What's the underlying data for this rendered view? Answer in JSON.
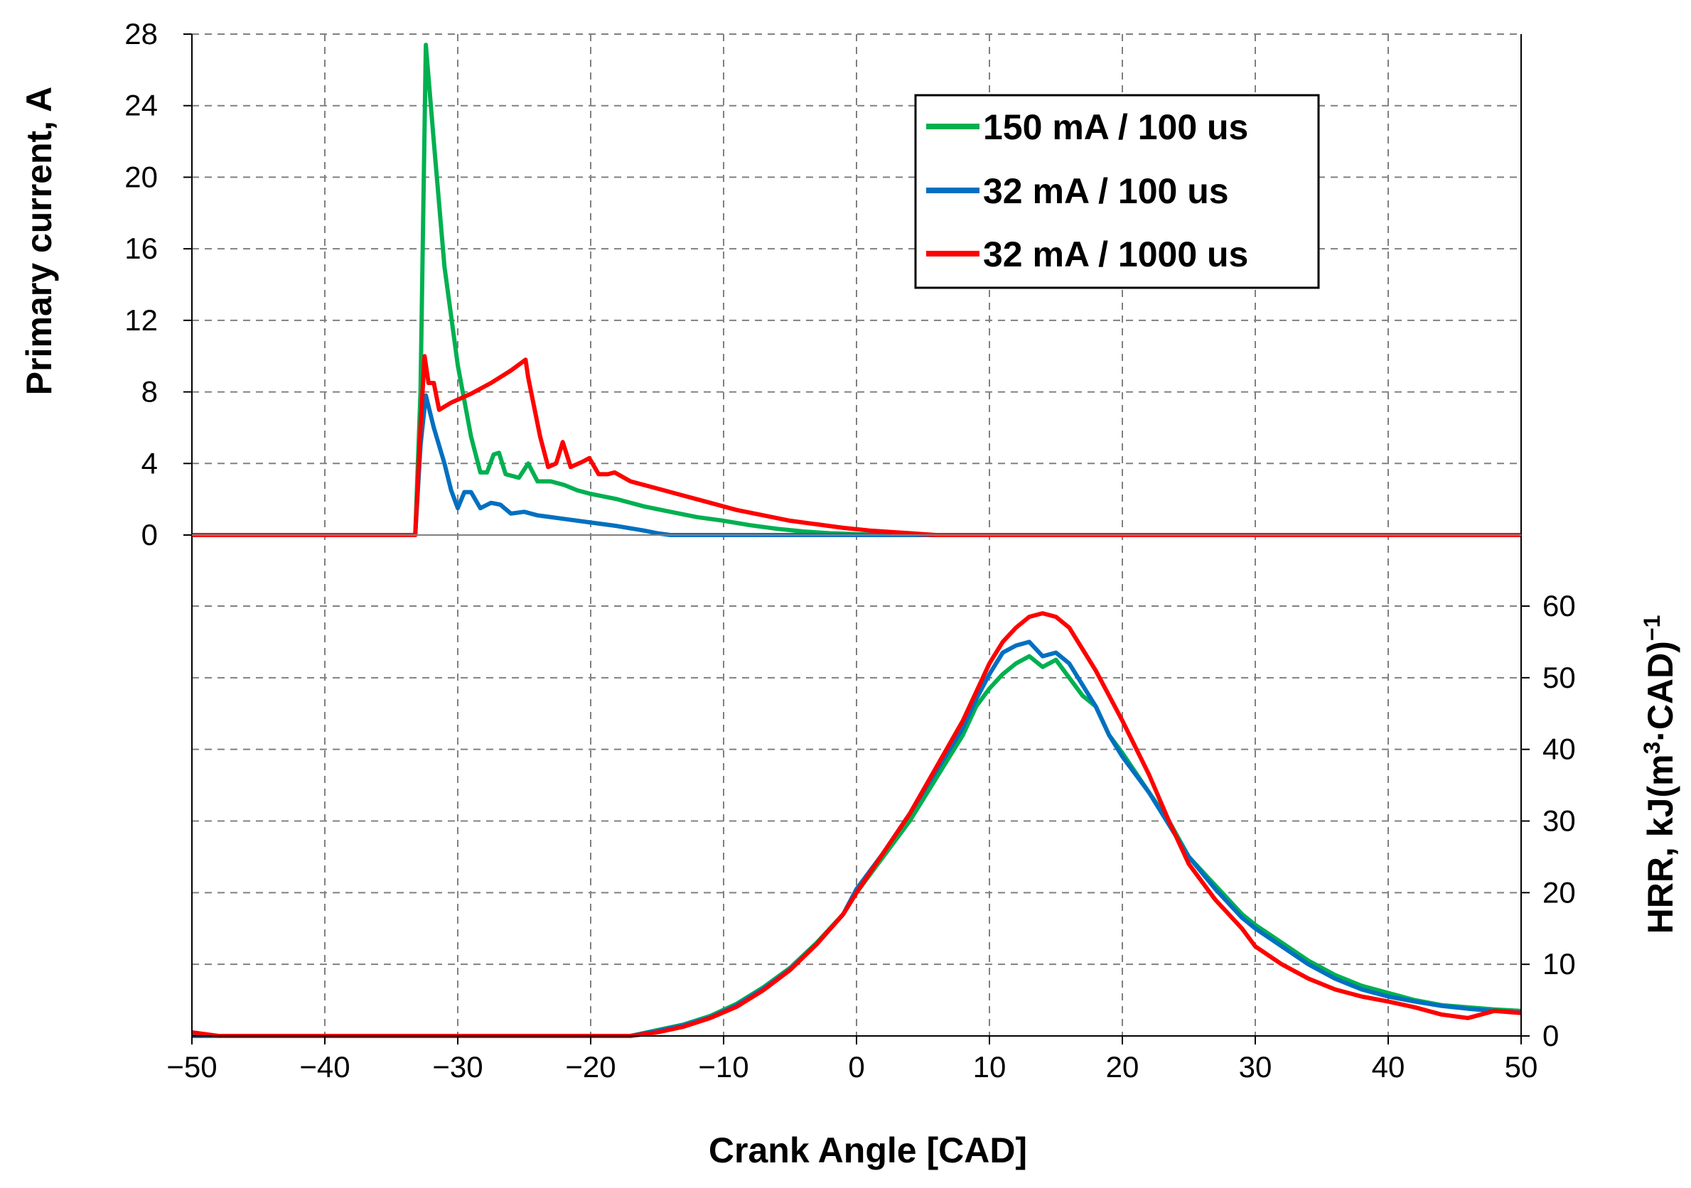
{
  "chart_data": {
    "type": "line",
    "title": "",
    "xlabel": "Crank Angle [CAD]",
    "xlim": [
      -50,
      50
    ],
    "xticks": [
      -50,
      -40,
      -30,
      -20,
      -10,
      0,
      10,
      20,
      30,
      40,
      50
    ],
    "xtick_labels": [
      "−50",
      "−40",
      "−30",
      "−20",
      "−10",
      "0",
      "10",
      "20",
      "30",
      "40",
      "50"
    ],
    "grid": true,
    "legend_position": "top-right",
    "panels": {
      "current": {
        "ylabel": "Primary current, A",
        "ylim": [
          0,
          28
        ],
        "yticks": [
          0,
          4,
          8,
          12,
          16,
          20,
          24,
          28
        ],
        "ytick_labels": [
          "0",
          "4",
          "8",
          "12",
          "16",
          "20",
          "24",
          "28"
        ],
        "axis_side": "left"
      },
      "hrr": {
        "ylabel_main": "HRR,  kJ(m",
        "ylabel_sup1": "3",
        "ylabel_mid": "·CAD)",
        "ylabel_sup2": "−1",
        "ylim": [
          0,
          60
        ],
        "yticks": [
          0,
          10,
          20,
          30,
          40,
          50,
          60
        ],
        "ytick_labels": [
          "0",
          "10",
          "20",
          "30",
          "40",
          "50",
          "60"
        ],
        "axis_side": "right"
      }
    },
    "series": [
      {
        "name": "150 mA / 100 us",
        "color": "#00b050",
        "current": [
          [
            -50,
            0
          ],
          [
            -33.2,
            0
          ],
          [
            -32.8,
            8
          ],
          [
            -32.4,
            27.4
          ],
          [
            -31.8,
            22
          ],
          [
            -31,
            15
          ],
          [
            -30,
            9.5
          ],
          [
            -29,
            5.5
          ],
          [
            -28.3,
            3.5
          ],
          [
            -27.8,
            3.5
          ],
          [
            -27.3,
            4.5
          ],
          [
            -26.9,
            4.6
          ],
          [
            -26.4,
            3.4
          ],
          [
            -25.4,
            3.2
          ],
          [
            -24.7,
            4.0
          ],
          [
            -24,
            3.0
          ],
          [
            -23,
            3.0
          ],
          [
            -22,
            2.8
          ],
          [
            -21,
            2.5
          ],
          [
            -20,
            2.3
          ],
          [
            -18,
            2.0
          ],
          [
            -16,
            1.6
          ],
          [
            -14,
            1.3
          ],
          [
            -12,
            1.0
          ],
          [
            -10,
            0.8
          ],
          [
            -8,
            0.55
          ],
          [
            -6,
            0.35
          ],
          [
            -4,
            0.2
          ],
          [
            -2,
            0.1
          ],
          [
            0,
            0.05
          ],
          [
            2,
            0
          ],
          [
            50,
            0
          ]
        ],
        "hrr": [
          [
            -50,
            0
          ],
          [
            -17,
            0
          ],
          [
            -15,
            0.8
          ],
          [
            -13,
            1.6
          ],
          [
            -11,
            2.8
          ],
          [
            -9,
            4.5
          ],
          [
            -7,
            6.8
          ],
          [
            -5,
            9.5
          ],
          [
            -3,
            13
          ],
          [
            -1,
            17
          ],
          [
            0,
            20
          ],
          [
            2,
            25
          ],
          [
            4,
            30
          ],
          [
            6,
            36
          ],
          [
            8,
            42
          ],
          [
            9,
            46
          ],
          [
            10,
            48.5
          ],
          [
            11,
            50.5
          ],
          [
            12,
            52
          ],
          [
            13,
            53
          ],
          [
            14,
            51.5
          ],
          [
            15,
            52.5
          ],
          [
            16,
            50
          ],
          [
            17,
            47.5
          ],
          [
            18,
            46
          ],
          [
            19,
            42
          ],
          [
            20,
            39.5
          ],
          [
            22,
            34
          ],
          [
            23.5,
            30
          ],
          [
            25,
            25
          ],
          [
            27,
            21
          ],
          [
            29,
            17
          ],
          [
            30,
            15.5
          ],
          [
            32,
            13
          ],
          [
            34,
            10.5
          ],
          [
            36,
            8.5
          ],
          [
            38,
            7
          ],
          [
            40,
            6
          ],
          [
            42,
            5
          ],
          [
            44,
            4.3
          ],
          [
            46,
            4
          ],
          [
            48,
            3.7
          ],
          [
            50,
            3.5
          ]
        ]
      },
      {
        "name": "32 mA / 100 us",
        "color": "#0070c0",
        "current": [
          [
            -50,
            0
          ],
          [
            -33.2,
            0
          ],
          [
            -32.8,
            5
          ],
          [
            -32.4,
            7.8
          ],
          [
            -31.8,
            6
          ],
          [
            -31,
            4
          ],
          [
            -30.5,
            2.5
          ],
          [
            -30,
            1.5
          ],
          [
            -29.5,
            2.4
          ],
          [
            -29,
            2.4
          ],
          [
            -28.3,
            1.5
          ],
          [
            -27.5,
            1.8
          ],
          [
            -26.8,
            1.7
          ],
          [
            -26,
            1.2
          ],
          [
            -25,
            1.3
          ],
          [
            -24,
            1.1
          ],
          [
            -22,
            0.9
          ],
          [
            -20,
            0.7
          ],
          [
            -18,
            0.5
          ],
          [
            -16,
            0.25
          ],
          [
            -15,
            0.1
          ],
          [
            -14,
            0
          ],
          [
            50,
            0
          ]
        ],
        "hrr": [
          [
            -50,
            0
          ],
          [
            -17,
            0
          ],
          [
            -15,
            0.7
          ],
          [
            -13,
            1.5
          ],
          [
            -11,
            2.6
          ],
          [
            -9,
            4.3
          ],
          [
            -7,
            6.6
          ],
          [
            -5,
            9.3
          ],
          [
            -3,
            12.8
          ],
          [
            -1,
            17
          ],
          [
            0,
            20.5
          ],
          [
            2,
            25.5
          ],
          [
            4,
            31
          ],
          [
            6,
            37
          ],
          [
            8,
            43
          ],
          [
            9,
            47
          ],
          [
            10,
            50.5
          ],
          [
            11,
            53.5
          ],
          [
            12,
            54.5
          ],
          [
            13,
            55
          ],
          [
            14,
            53
          ],
          [
            15,
            53.5
          ],
          [
            16,
            52
          ],
          [
            17,
            49
          ],
          [
            18,
            46
          ],
          [
            19,
            42
          ],
          [
            20,
            39
          ],
          [
            22,
            34
          ],
          [
            23.5,
            29.5
          ],
          [
            25,
            25
          ],
          [
            27,
            20.5
          ],
          [
            29,
            16.5
          ],
          [
            30,
            15
          ],
          [
            32,
            12.5
          ],
          [
            34,
            10
          ],
          [
            36,
            8
          ],
          [
            38,
            6.5
          ],
          [
            40,
            5.5
          ],
          [
            42,
            4.8
          ],
          [
            44,
            4.2
          ],
          [
            46,
            3.8
          ],
          [
            48,
            3.5
          ],
          [
            50,
            3.3
          ]
        ]
      },
      {
        "name": "32 mA / 1000 us",
        "color": "#ff0000",
        "current": [
          [
            -50,
            0
          ],
          [
            -33.2,
            0
          ],
          [
            -32.8,
            6
          ],
          [
            -32.5,
            10
          ],
          [
            -32.2,
            8.5
          ],
          [
            -31.8,
            8.5
          ],
          [
            -31.4,
            7
          ],
          [
            -30.5,
            7.4
          ],
          [
            -29,
            7.9
          ],
          [
            -27.5,
            8.5
          ],
          [
            -26,
            9.2
          ],
          [
            -24.9,
            9.8
          ],
          [
            -24.7,
            8.8
          ],
          [
            -23.8,
            5.5
          ],
          [
            -23.2,
            3.8
          ],
          [
            -22.6,
            4.0
          ],
          [
            -22.1,
            5.2
          ],
          [
            -21.5,
            3.8
          ],
          [
            -20.6,
            4.1
          ],
          [
            -20.1,
            4.3
          ],
          [
            -19.4,
            3.4
          ],
          [
            -18.7,
            3.4
          ],
          [
            -18.2,
            3.5
          ],
          [
            -17,
            3.0
          ],
          [
            -15,
            2.6
          ],
          [
            -13,
            2.2
          ],
          [
            -11,
            1.8
          ],
          [
            -9,
            1.4
          ],
          [
            -7,
            1.1
          ],
          [
            -5,
            0.8
          ],
          [
            -3,
            0.6
          ],
          [
            -1,
            0.4
          ],
          [
            1,
            0.25
          ],
          [
            3,
            0.15
          ],
          [
            5,
            0.05
          ],
          [
            6,
            0
          ],
          [
            50,
            0
          ]
        ],
        "hrr": [
          [
            -50,
            0.5
          ],
          [
            -48,
            0
          ],
          [
            -17,
            0
          ],
          [
            -15,
            0.5
          ],
          [
            -13,
            1.3
          ],
          [
            -11,
            2.5
          ],
          [
            -9,
            4.1
          ],
          [
            -7,
            6.4
          ],
          [
            -5,
            9.2
          ],
          [
            -3,
            12.8
          ],
          [
            -1,
            17
          ],
          [
            0,
            20
          ],
          [
            2,
            25.5
          ],
          [
            4,
            31
          ],
          [
            6,
            37.5
          ],
          [
            8,
            44
          ],
          [
            9,
            48
          ],
          [
            10,
            52
          ],
          [
            11,
            55
          ],
          [
            12,
            57
          ],
          [
            13,
            58.5
          ],
          [
            14,
            59
          ],
          [
            15,
            58.5
          ],
          [
            16,
            57
          ],
          [
            17,
            54
          ],
          [
            18,
            51
          ],
          [
            19,
            47.5
          ],
          [
            20,
            44
          ],
          [
            22,
            36.5
          ],
          [
            23.5,
            30
          ],
          [
            25,
            24
          ],
          [
            27,
            19
          ],
          [
            29,
            15
          ],
          [
            30,
            12.5
          ],
          [
            32,
            10
          ],
          [
            34,
            8
          ],
          [
            36,
            6.5
          ],
          [
            38,
            5.5
          ],
          [
            40,
            4.8
          ],
          [
            42,
            4
          ],
          [
            44,
            3
          ],
          [
            46,
            2.5
          ],
          [
            48,
            3.5
          ],
          [
            50,
            3.2
          ]
        ]
      }
    ]
  }
}
